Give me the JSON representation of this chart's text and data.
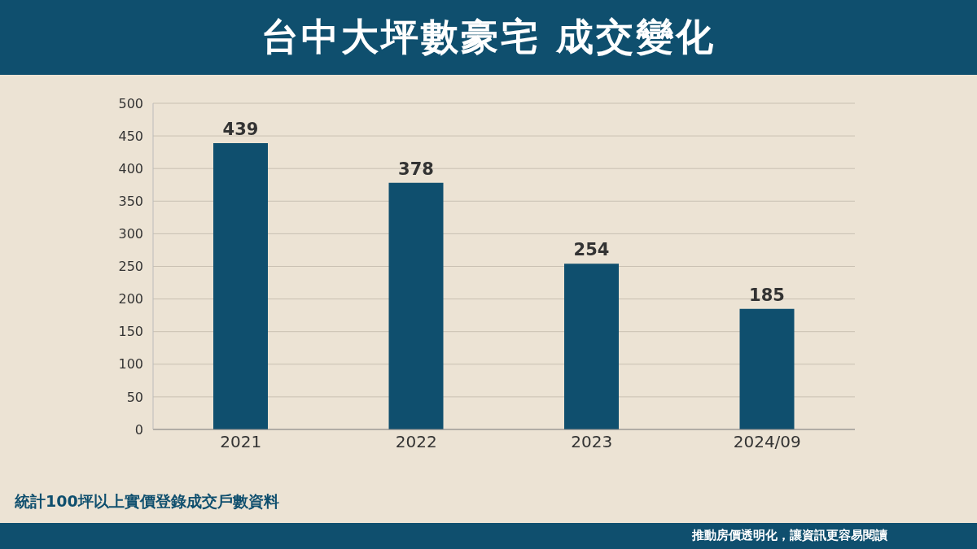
{
  "chart_data": {
    "type": "bar",
    "title": "台中大坪數豪宅 成交變化",
    "categories": [
      "2021",
      "2022",
      "2023",
      "2024/09"
    ],
    "values": [
      439,
      378,
      254,
      185
    ],
    "color": "#0f4f6e",
    "ylim": [
      0,
      500
    ],
    "yticks": [
      0,
      50,
      100,
      150,
      200,
      250,
      300,
      350,
      400,
      450,
      500
    ],
    "grid": "y",
    "data_labels": true,
    "legend": false,
    "annotations": [
      "統計100坪以上實價登錄成交戶數資料",
      "推動房價透明化，讓資訊更容易閱讀"
    ]
  }
}
